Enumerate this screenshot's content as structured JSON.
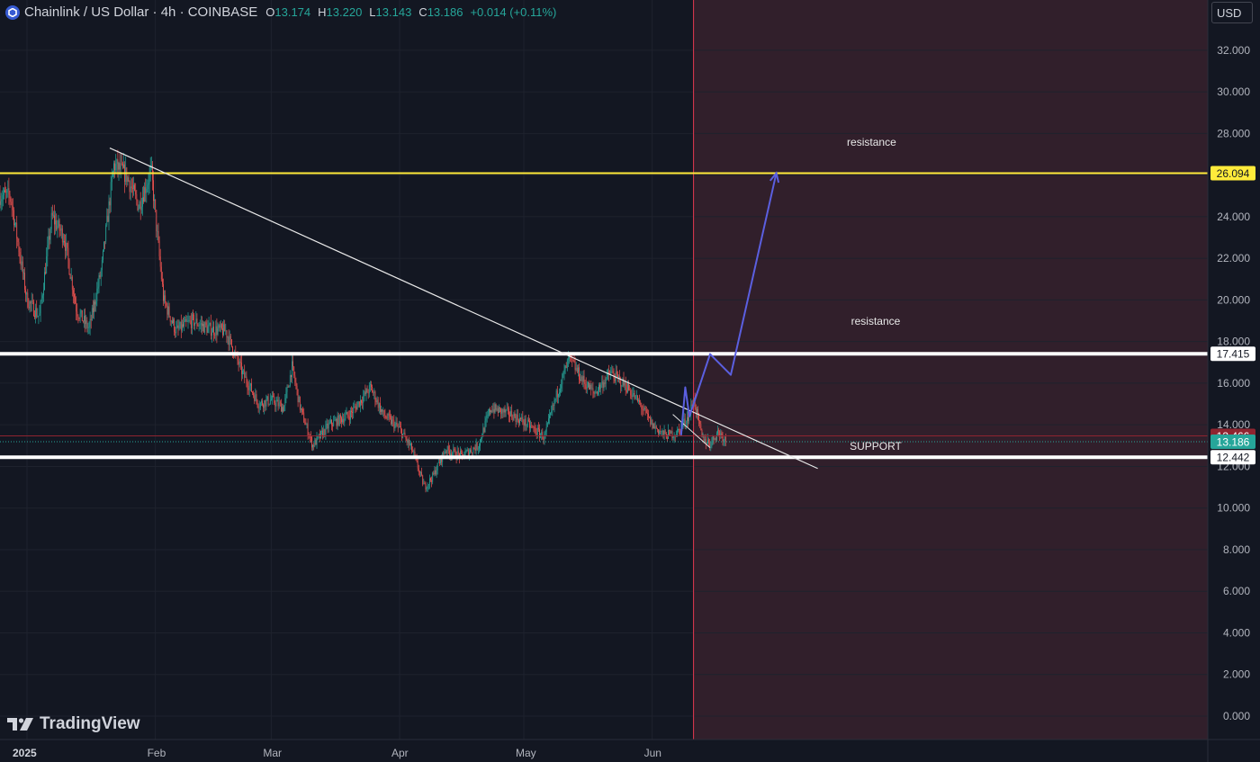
{
  "header": {
    "symbol": "Chainlink / US Dollar · 4h · COINBASE",
    "open_label": "O",
    "open": "13.174",
    "high_label": "H",
    "high": "13.220",
    "low_label": "L",
    "low": "13.143",
    "close_label": "C",
    "close": "13.186",
    "change": "+0.014 (+0.11%)"
  },
  "currency_button": "USD",
  "logo_text": "TradingView",
  "colors": {
    "background": "#131722",
    "grid": "#1e222d",
    "up": "#26a69a",
    "down": "#ef5350",
    "resistance_high": "#ffeb3b",
    "resistance_low": "#ffffff",
    "support": "#ffffff",
    "forecast_arrow": "#5b5fe0",
    "future_zone": "#311f2b",
    "divider": "#e53950"
  },
  "chart_data": {
    "type": "candlestick",
    "title": "Chainlink / US Dollar · 4h · COINBASE",
    "timeframe": "4h",
    "y_axis": {
      "min": 0,
      "max": 33,
      "ticks": [
        "0.000",
        "2.000",
        "4.000",
        "6.000",
        "8.000",
        "10.000",
        "12.000",
        "14.000",
        "16.000",
        "18.000",
        "20.000",
        "22.000",
        "24.000",
        "26.000",
        "28.000",
        "30.000",
        "32.000"
      ],
      "position": "right"
    },
    "x_axis": {
      "labels": [
        {
          "label": "2025",
          "date": "2025-01-01",
          "bold": true
        },
        {
          "label": "Feb",
          "date": "2025-02-01"
        },
        {
          "label": "Mar",
          "date": "2025-03-01"
        },
        {
          "label": "Apr",
          "date": "2025-04-01"
        },
        {
          "label": "May",
          "date": "2025-05-01"
        },
        {
          "label": "Jun",
          "date": "2025-06-01"
        }
      ]
    },
    "price_path": [
      {
        "date": "2024-12-28",
        "price": 25.0
      },
      {
        "date": "2025-01-01",
        "price": 20.0
      },
      {
        "date": "2025-01-04",
        "price": 19.2
      },
      {
        "date": "2025-01-07",
        "price": 24.0
      },
      {
        "date": "2025-01-10",
        "price": 23.0
      },
      {
        "date": "2025-01-13",
        "price": 19.5
      },
      {
        "date": "2025-01-16",
        "price": 18.6
      },
      {
        "date": "2025-01-19",
        "price": 21.5
      },
      {
        "date": "2025-01-22",
        "price": 26.5
      },
      {
        "date": "2025-01-25",
        "price": 26.0
      },
      {
        "date": "2025-01-28",
        "price": 24.5
      },
      {
        "date": "2025-01-31",
        "price": 26.2
      },
      {
        "date": "2025-02-02",
        "price": 22.0
      },
      {
        "date": "2025-02-03",
        "price": 20.0
      },
      {
        "date": "2025-02-06",
        "price": 18.5
      },
      {
        "date": "2025-02-10",
        "price": 19.0
      },
      {
        "date": "2025-02-14",
        "price": 18.6
      },
      {
        "date": "2025-02-18",
        "price": 18.5
      },
      {
        "date": "2025-02-22",
        "price": 16.5
      },
      {
        "date": "2025-02-26",
        "price": 15.0
      },
      {
        "date": "2025-03-01",
        "price": 15.2
      },
      {
        "date": "2025-03-04",
        "price": 14.8
      },
      {
        "date": "2025-03-06",
        "price": 16.8
      },
      {
        "date": "2025-03-08",
        "price": 14.8
      },
      {
        "date": "2025-03-11",
        "price": 13.0
      },
      {
        "date": "2025-03-15",
        "price": 14.0
      },
      {
        "date": "2025-03-20",
        "price": 14.5
      },
      {
        "date": "2025-03-25",
        "price": 15.8
      },
      {
        "date": "2025-03-28",
        "price": 14.5
      },
      {
        "date": "2025-04-01",
        "price": 13.8
      },
      {
        "date": "2025-04-04",
        "price": 12.8
      },
      {
        "date": "2025-04-07",
        "price": 11.0
      },
      {
        "date": "2025-04-09",
        "price": 11.5
      },
      {
        "date": "2025-04-12",
        "price": 12.8
      },
      {
        "date": "2025-04-16",
        "price": 12.5
      },
      {
        "date": "2025-04-20",
        "price": 13.0
      },
      {
        "date": "2025-04-23",
        "price": 14.8
      },
      {
        "date": "2025-04-28",
        "price": 14.5
      },
      {
        "date": "2025-05-02",
        "price": 14.0
      },
      {
        "date": "2025-05-06",
        "price": 13.4
      },
      {
        "date": "2025-05-09",
        "price": 15.5
      },
      {
        "date": "2025-05-12",
        "price": 17.2
      },
      {
        "date": "2025-05-15",
        "price": 16.2
      },
      {
        "date": "2025-05-18",
        "price": 15.5
      },
      {
        "date": "2025-05-22",
        "price": 16.5
      },
      {
        "date": "2025-05-26",
        "price": 15.8
      },
      {
        "date": "2025-05-29",
        "price": 15.0
      },
      {
        "date": "2025-06-01",
        "price": 14.0
      },
      {
        "date": "2025-06-04",
        "price": 13.5
      },
      {
        "date": "2025-06-07",
        "price": 13.6
      },
      {
        "date": "2025-06-10",
        "price": 14.5
      },
      {
        "date": "2025-06-11",
        "price": 15.3
      },
      {
        "date": "2025-06-13",
        "price": 13.4
      },
      {
        "date": "2025-06-15",
        "price": 13.1
      },
      {
        "date": "2025-06-17",
        "price": 13.7
      },
      {
        "date": "2025-06-19",
        "price": 13.19
      }
    ],
    "horizontal_levels": [
      {
        "name": "resistance",
        "price": 26.094,
        "label": "26.094",
        "color": "#ffeb3b",
        "badge_text_color": "#131722"
      },
      {
        "name": "resistance",
        "price": 17.415,
        "label": "17.415",
        "color": "#ffffff",
        "badge_text_color": "#131722"
      },
      {
        "name": "SUPPORT",
        "price": 12.442,
        "label": "12.442",
        "color": "#ffffff",
        "badge_text_color": "#131722"
      }
    ],
    "price_badges": [
      {
        "price": 13.466,
        "label": "13.466",
        "color": "#8f2430"
      },
      {
        "price": 13.186,
        "label": "13.186",
        "color": "#26a69a"
      }
    ],
    "trendline": {
      "from": {
        "date": "2025-01-21",
        "price": 27.3
      },
      "to": {
        "date": "2025-07-11",
        "price": 11.9
      }
    },
    "small_trendline": {
      "from": {
        "date": "2025-06-06",
        "price": 14.5
      },
      "to": {
        "date": "2025-06-15",
        "price": 12.9
      }
    },
    "forecast_path": [
      {
        "date": "2025-06-08",
        "price": 13.5
      },
      {
        "date": "2025-06-09",
        "price": 15.8
      },
      {
        "date": "2025-06-10",
        "price": 14.4
      },
      {
        "date": "2025-06-15",
        "price": 17.4
      },
      {
        "date": "2025-06-20",
        "price": 16.4
      },
      {
        "date": "2025-07-01",
        "price": 26.1
      }
    ],
    "annotations": [
      {
        "text": "resistance",
        "date": "2025-07-24",
        "price": 27.4
      },
      {
        "text": "resistance",
        "date": "2025-07-25",
        "price": 18.8
      },
      {
        "text": "SUPPORT",
        "date": "2025-07-25",
        "price": 12.8
      }
    ],
    "forecast_zone_start": "2025-06-11",
    "last_price": 13.186
  }
}
